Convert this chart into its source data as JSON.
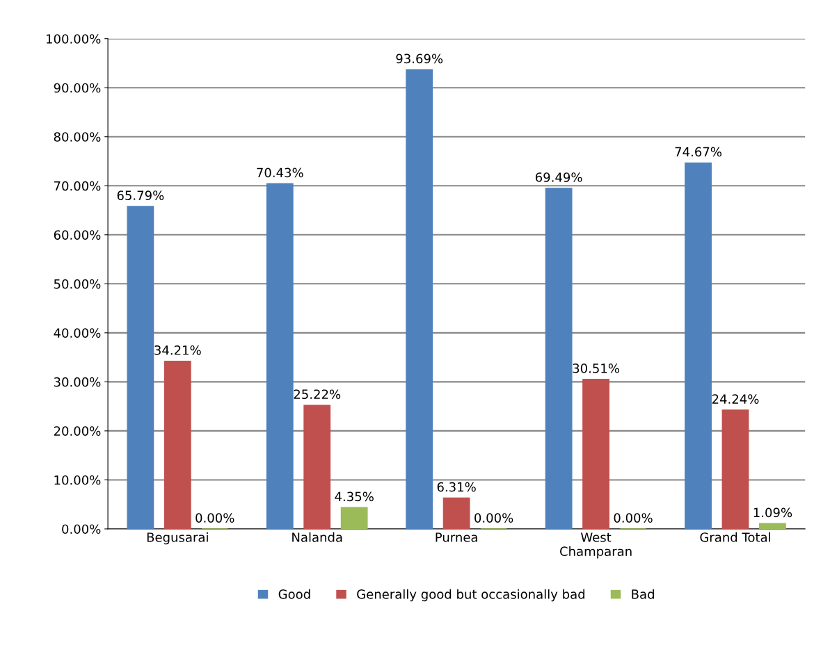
{
  "chart_data": {
    "type": "bar",
    "categories": [
      "Begusarai",
      "Nalanda",
      "Purnea",
      "West\nChamparan",
      "Grand Total"
    ],
    "series": [
      {
        "name": "Good",
        "color": "#4f81bd",
        "values": [
          65.79,
          70.43,
          93.69,
          69.49,
          74.67
        ],
        "value_labels": [
          "65.79%",
          "70.43%",
          "93.69%",
          "69.49%",
          "74.67%"
        ]
      },
      {
        "name": "Generally good but occasionally bad",
        "color": "#c0504d",
        "values": [
          34.21,
          25.22,
          6.31,
          30.51,
          24.24
        ],
        "value_labels": [
          "34.21%",
          "25.22%",
          "6.31%",
          "30.51%",
          "24.24%"
        ]
      },
      {
        "name": "Bad",
        "color": "#9bbb59",
        "values": [
          0.0,
          4.35,
          0.0,
          0.0,
          1.09
        ],
        "value_labels": [
          "0.00%",
          "4.35%",
          "0.00%",
          "0.00%",
          "1.09%"
        ]
      }
    ],
    "ylim": [
      0,
      100
    ],
    "yticks": [
      {
        "value": 0,
        "label": "0.00%"
      },
      {
        "value": 10,
        "label": "10.00%"
      },
      {
        "value": 20,
        "label": "20.00%"
      },
      {
        "value": 30,
        "label": "30.00%"
      },
      {
        "value": 40,
        "label": "40.00%"
      },
      {
        "value": 50,
        "label": "50.00%"
      },
      {
        "value": 60,
        "label": "60.00%"
      },
      {
        "value": 70,
        "label": "70.00%"
      },
      {
        "value": 80,
        "label": "80.00%"
      },
      {
        "value": 90,
        "label": "90.00%"
      },
      {
        "value": 100,
        "label": "100.00%"
      }
    ],
    "grid": "y",
    "legend": "bottom"
  }
}
